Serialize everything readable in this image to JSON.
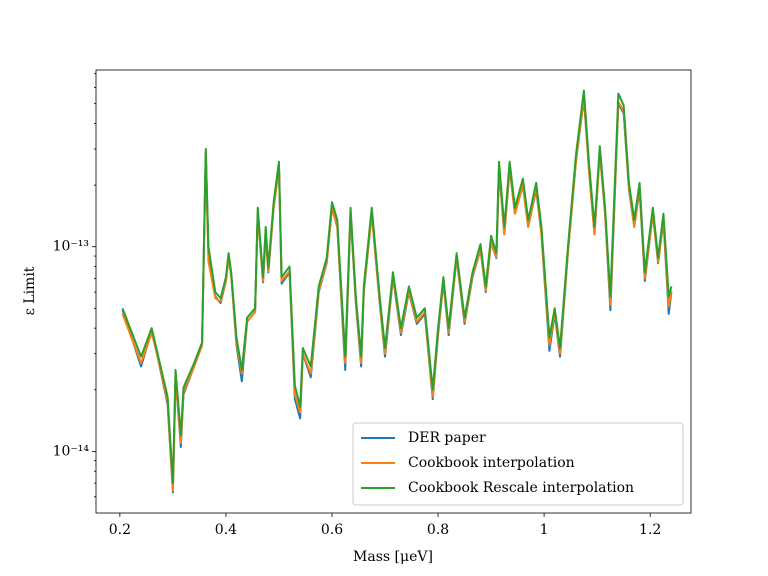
{
  "chart_data": {
    "type": "line",
    "xlabel": "Mass [μeV]",
    "ylabel": "ε Limit",
    "xlim": [
      0.155,
      1.277
    ],
    "xticks": [
      0.2,
      0.4,
      0.6,
      0.8,
      1.0,
      1.2
    ],
    "ylim": [
      5e-15,
      7.3e-13
    ],
    "yscale": "log",
    "yticks": [
      {
        "value": 1e-14,
        "label": "10⁻¹⁴"
      },
      {
        "value": 1e-13,
        "label": "10⁻¹³"
      }
    ],
    "yminorticks": [
      6e-15,
      7e-15,
      8e-15,
      9e-15,
      2e-14,
      3e-14,
      4e-14,
      5e-14,
      6e-14,
      7e-14,
      8e-14,
      9e-14,
      2e-13,
      3e-13,
      4e-13,
      5e-13,
      6e-13,
      7e-13
    ],
    "legend": "lower right",
    "x": [
      0.205,
      0.24,
      0.26,
      0.27,
      0.29,
      0.3,
      0.305,
      0.315,
      0.32,
      0.34,
      0.355,
      0.362,
      0.367,
      0.38,
      0.39,
      0.4,
      0.405,
      0.41,
      0.42,
      0.43,
      0.44,
      0.455,
      0.46,
      0.47,
      0.475,
      0.48,
      0.49,
      0.5,
      0.505,
      0.52,
      0.53,
      0.54,
      0.545,
      0.56,
      0.575,
      0.59,
      0.6,
      0.61,
      0.625,
      0.635,
      0.645,
      0.655,
      0.66,
      0.675,
      0.69,
      0.7,
      0.715,
      0.73,
      0.745,
      0.76,
      0.775,
      0.79,
      0.8,
      0.81,
      0.82,
      0.835,
      0.85,
      0.865,
      0.88,
      0.89,
      0.9,
      0.91,
      0.915,
      0.925,
      0.935,
      0.945,
      0.96,
      0.97,
      0.985,
      0.995,
      1.01,
      1.02,
      1.03,
      1.045,
      1.06,
      1.075,
      1.085,
      1.095,
      1.105,
      1.115,
      1.125,
      1.14,
      1.15,
      1.16,
      1.17,
      1.18,
      1.19,
      1.205,
      1.215,
      1.225,
      1.235,
      1.24
    ],
    "series": [
      {
        "name": "DER paper",
        "color": "#1f77b4",
        "values": [
          4.9e-14,
          2.6e-14,
          3.9e-14,
          3e-14,
          1.7e-14,
          6.3e-15,
          2.3e-14,
          1.05e-14,
          1.9e-14,
          2.6e-14,
          3.3e-14,
          2.9e-13,
          9.5e-14,
          5.7e-14,
          5.3e-14,
          6.8e-14,
          9e-14,
          7.2e-14,
          3.3e-14,
          2.2e-14,
          4.3e-14,
          4.8e-14,
          1.45e-13,
          6.7e-14,
          1.15e-13,
          7.5e-14,
          1.55e-13,
          2.45e-13,
          6.6e-14,
          7.5e-14,
          1.8e-14,
          1.45e-14,
          3e-14,
          2.3e-14,
          6e-14,
          8.3e-14,
          1.55e-13,
          1.25e-13,
          2.5e-14,
          1.45e-13,
          5.3e-14,
          2.6e-14,
          6e-14,
          1.45e-13,
          5.3e-14,
          2.9e-14,
          7.1e-14,
          3.7e-14,
          6e-14,
          4.2e-14,
          4.7e-14,
          1.8e-14,
          3.7e-14,
          6.7e-14,
          3.7e-14,
          8.8e-14,
          4.2e-14,
          7.1e-14,
          9.7e-14,
          6e-14,
          1.05e-13,
          8.8e-14,
          2.4e-13,
          1.15e-13,
          2.4e-13,
          1.45e-13,
          2e-13,
          1.25e-13,
          1.9e-13,
          1.15e-13,
          3.1e-14,
          4.7e-14,
          2.9e-14,
          9.4e-14,
          2.6e-13,
          5.3e-13,
          2.3e-13,
          1.15e-13,
          2.9e-13,
          1.45e-13,
          4.9e-14,
          5e-13,
          4.5e-13,
          1.9e-13,
          1.25e-13,
          1.9e-13,
          6.8e-14,
          1.45e-13,
          8.3e-14,
          1.35e-13,
          4.7e-14,
          6e-14
        ]
      },
      {
        "name": "Cookbook interpolation",
        "color": "#ff7f0e",
        "values": [
          4.7e-14,
          2.7e-14,
          3.8e-14,
          3e-14,
          1.75e-14,
          6.4e-15,
          2.3e-14,
          1.1e-14,
          1.95e-14,
          2.6e-14,
          3.3e-14,
          2.9e-13,
          8.5e-14,
          5.6e-14,
          5.4e-14,
          6.8e-14,
          8.8e-14,
          7.2e-14,
          3.4e-14,
          2.4e-14,
          4.3e-14,
          4.8e-14,
          1.45e-13,
          6.8e-14,
          1.15e-13,
          7.6e-14,
          1.55e-13,
          2.45e-13,
          6.8e-14,
          7.6e-14,
          1.9e-14,
          1.55e-14,
          3e-14,
          2.4e-14,
          6.1e-14,
          8.4e-14,
          1.55e-13,
          1.25e-13,
          2.7e-14,
          1.45e-13,
          5.4e-14,
          2.7e-14,
          6.1e-14,
          1.45e-13,
          5.4e-14,
          3e-14,
          7.2e-14,
          3.8e-14,
          6.1e-14,
          4.3e-14,
          4.8e-14,
          1.85e-14,
          3.8e-14,
          6.8e-14,
          3.8e-14,
          8.9e-14,
          4.3e-14,
          7.2e-14,
          9.8e-14,
          6.1e-14,
          1.05e-13,
          8.9e-14,
          2.45e-13,
          1.15e-13,
          2.45e-13,
          1.45e-13,
          2e-13,
          1.25e-13,
          1.95e-13,
          1.15e-13,
          3.3e-14,
          4.8e-14,
          3e-14,
          9.5e-14,
          2.6e-13,
          5.4e-13,
          2.3e-13,
          1.15e-13,
          2.9e-13,
          1.45e-13,
          5.2e-14,
          5.1e-13,
          4.6e-13,
          1.95e-13,
          1.25e-13,
          1.95e-13,
          7e-14,
          1.45e-13,
          8.4e-14,
          1.35e-13,
          5.1e-14,
          6.1e-14
        ]
      },
      {
        "name": "Cookbook Rescale interpolation",
        "color": "#2ca02c",
        "values": [
          5e-14,
          2.9e-14,
          4e-14,
          3.1e-14,
          1.85e-14,
          7e-15,
          2.5e-14,
          1.2e-14,
          2.05e-14,
          2.7e-14,
          3.4e-14,
          3e-13,
          1e-13,
          6e-14,
          5.6e-14,
          7.1e-14,
          9.3e-14,
          7.5e-14,
          3.6e-14,
          2.5e-14,
          4.5e-14,
          5e-14,
          1.55e-13,
          7.1e-14,
          1.25e-13,
          7.9e-14,
          1.65e-13,
          2.6e-13,
          7.1e-14,
          8e-14,
          2.1e-14,
          1.65e-14,
          3.2e-14,
          2.6e-14,
          6.4e-14,
          8.8e-14,
          1.65e-13,
          1.35e-13,
          2.9e-14,
          1.55e-13,
          5.7e-14,
          2.9e-14,
          6.4e-14,
          1.55e-13,
          5.7e-14,
          3.2e-14,
          7.5e-14,
          4e-14,
          6.4e-14,
          4.5e-14,
          5e-14,
          2e-14,
          4e-14,
          7.1e-14,
          4e-14,
          9.3e-14,
          4.5e-14,
          7.5e-14,
          1.03e-13,
          6.4e-14,
          1.13e-13,
          9.3e-14,
          2.6e-13,
          1.25e-13,
          2.6e-13,
          1.55e-13,
          2.15e-13,
          1.35e-13,
          2.05e-13,
          1.25e-13,
          3.6e-14,
          5e-14,
          3.2e-14,
          1e-13,
          2.8e-13,
          5.8e-13,
          2.5e-13,
          1.25e-13,
          3.1e-13,
          1.55e-13,
          5.7e-14,
          5.6e-13,
          4.9e-13,
          2.05e-13,
          1.35e-13,
          2.05e-13,
          7.5e-14,
          1.55e-13,
          8.8e-14,
          1.45e-13,
          5.7e-14,
          6.4e-14
        ]
      }
    ]
  }
}
